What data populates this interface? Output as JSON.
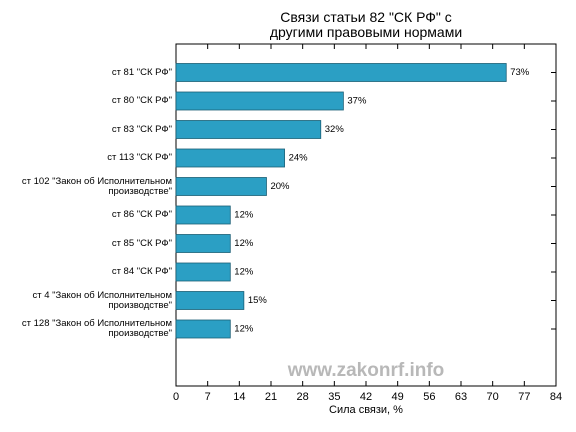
{
  "chart_data": {
    "type": "barh",
    "title": "Связи статьи 82 \"СК РФ\" с\nдругими правовыми нормами",
    "xlabel": "Сила связи, %",
    "watermark": "www.zakonrf.info",
    "categories": [
      "ст 81 \"СК РФ\"",
      "ст 80 \"СК РФ\"",
      "ст 83 \"СК РФ\"",
      "ст 113 \"СК РФ\"",
      "ст 102 \"Закон об Исполнительном\nпроизводстве\"",
      "ст 86 \"СК РФ\"",
      "ст 85 \"СК РФ\"",
      "ст 84 \"СК РФ\"",
      "ст 4 \"Закон об Исполнительном\nпроизводстве\"",
      "ст 128 \"Закон об Исполнительном\nпроизводстве\""
    ],
    "values": [
      73,
      37,
      32,
      24,
      20,
      12,
      12,
      12,
      15,
      12
    ],
    "value_labels": [
      "73%",
      "37%",
      "32%",
      "24%",
      "20%",
      "12%",
      "12%",
      "12%",
      "15%",
      "12%"
    ],
    "color": "#2b9fc4",
    "xlim": [
      0,
      84
    ],
    "xticks": [
      0,
      7,
      14,
      21,
      28,
      35,
      42,
      49,
      56,
      63,
      70,
      77,
      84
    ]
  }
}
